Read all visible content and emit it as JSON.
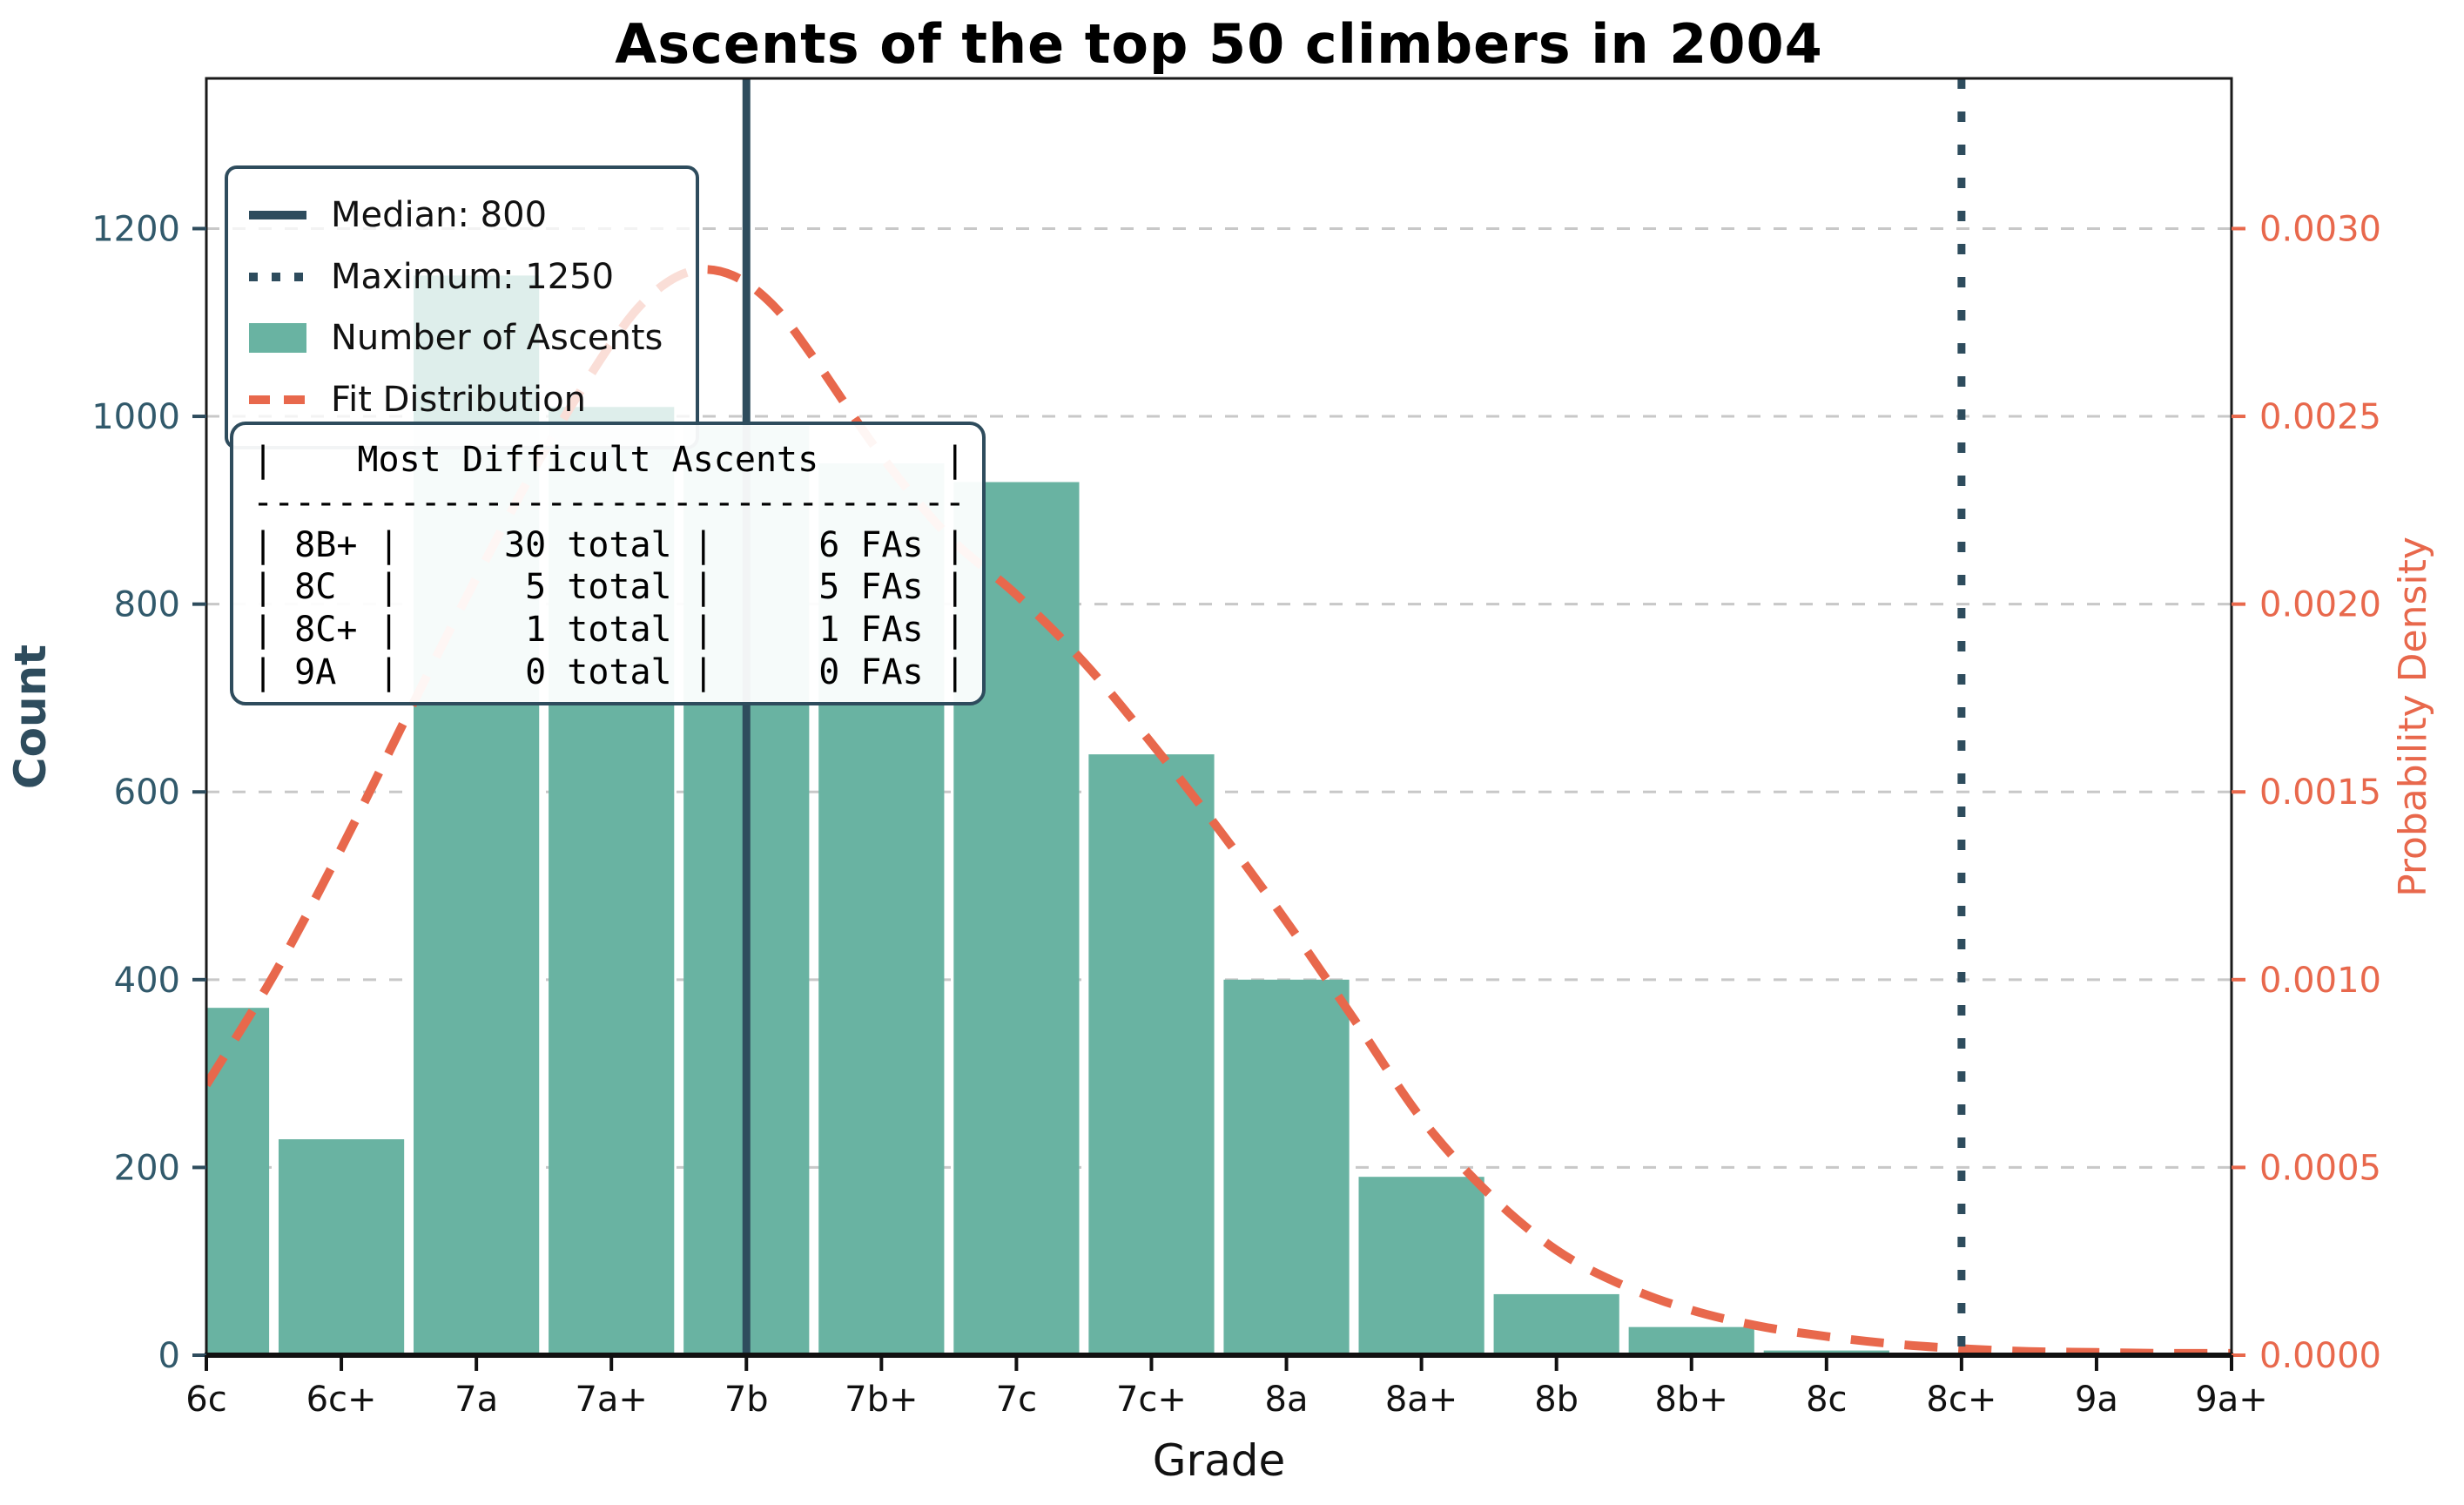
{
  "title": "Ascents of the top 50 climbers in 2004",
  "chart_data": {
    "type": "bar",
    "title": "Ascents of the top 50 climbers in 2004",
    "xlabel": "Grade",
    "ylabel_left": "Count",
    "ylabel_right": "Probability Density",
    "categories": [
      "6c",
      "6c+",
      "7a",
      "7a+",
      "7b",
      "7b+",
      "7c",
      "7c+",
      "8a",
      "8a+",
      "8b",
      "8b+",
      "8c",
      "8c+",
      "9a",
      "9a+"
    ],
    "series": [
      {
        "name": "Number of Ascents",
        "values": [
          370,
          230,
          1150,
          1010,
          990,
          950,
          930,
          640,
          400,
          190,
          65,
          30,
          5,
          1,
          0,
          0
        ]
      }
    ],
    "ylim_left": [
      0,
      1360
    ],
    "yticks_left": [
      0,
      200,
      400,
      600,
      800,
      1000,
      1200
    ],
    "yticks_right": [
      "0.0000",
      "0.0005",
      "0.0010",
      "0.0015",
      "0.0020",
      "0.0025",
      "0.0030"
    ],
    "right_axis_alignment": "0.0005 density per 200 counts",
    "grid": "horizontal-dashed",
    "legend_position": "upper-left",
    "legend": {
      "items": [
        {
          "label": "Median: 800",
          "swatch": "solid-line"
        },
        {
          "label": "Maximum: 1250",
          "swatch": "dotted-line"
        },
        {
          "label": "Number of Ascents",
          "swatch": "filled-rect"
        },
        {
          "label": "Fit Distribution",
          "swatch": "dashed-line"
        }
      ]
    },
    "vlines": [
      {
        "name": "median-line",
        "label": "Median: 800",
        "x_category": "7b",
        "x_index": 4,
        "style": "solid"
      },
      {
        "name": "maximum-line",
        "label": "Maximum: 1250",
        "x_category": "8c+",
        "x_index": 13,
        "style": "dotted"
      }
    ],
    "fit_curve": {
      "name": "Fit Distribution",
      "points_x": [
        0,
        0.5,
        1,
        1.5,
        2,
        2.5,
        3,
        3.3,
        3.6,
        3.9,
        4.2,
        4.5,
        5,
        5.5,
        6,
        6.5,
        7,
        7.5,
        8,
        8.5,
        9,
        9.5,
        10,
        10.5,
        11,
        11.5,
        12,
        12.5,
        13,
        13.5,
        14,
        14.5,
        15
      ],
      "points_y": [
        288,
        405,
        540,
        685,
        828,
        962,
        1078,
        1130,
        1155,
        1150,
        1118,
        1062,
        958,
        872,
        810,
        738,
        652,
        560,
        462,
        358,
        252,
        172,
        112,
        74,
        48,
        31,
        20,
        12,
        7,
        4,
        3,
        2,
        2
      ]
    },
    "colors": {
      "bar": "#69b3a2",
      "curve": "#e8684c",
      "slate": "#2e4c5d",
      "left_tick_label": "#31596b",
      "right_tick_label": "#e8684c",
      "x_tick_label": "#111111",
      "grid": "#c8c8c8",
      "spine": "#1a1a1a"
    }
  },
  "stats_table": {
    "lines": [
      "|    Most Difficult Ascents      |",
      "----------------------------------",
      "| 8B+ |     30 total |     6 FAs |",
      "| 8C  |      5 total |     5 FAs |",
      "| 8C+ |      1 total |     1 FAs |",
      "| 9A  |      0 total |     0 FAs |"
    ]
  }
}
